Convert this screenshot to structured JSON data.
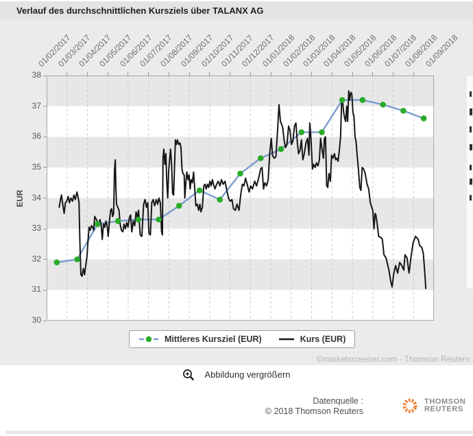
{
  "colors": {
    "panel_bg": "#ebebeb",
    "titlebar_bg": "#e3e3e3",
    "plot_bg": "#ffffff",
    "band": "#e7e7e7",
    "gridline": "#c9c9c9",
    "axis": "#a8a8a8",
    "kurs_line": "#161616",
    "target_line": "#7b9cce",
    "target_marker": "#2aab2a",
    "watermark": "#b3b3b3",
    "logo_orange": "#ef7f2f"
  },
  "chart": {
    "watermark": "©marketscreener.com - Thomson Reuters"
  },
  "zoom_control": {
    "label": "Abbildung vergrößern"
  },
  "footer": {
    "source_line1": "Datenquelle :",
    "source_line2": "© 2018 Thomson Reuters",
    "logo_line1": "THOMSON",
    "logo_line2": "REUTERS"
  },
  "chart_data": {
    "type": "line",
    "title": "Verlauf des durchschnittlichen Kursziels über TALANX AG",
    "xlabel": "",
    "ylabel": "EUR",
    "ylim": [
      30,
      38
    ],
    "yticks": [
      38,
      37,
      36,
      35,
      34,
      33,
      32,
      31,
      30
    ],
    "x_months_range": [
      0,
      19
    ],
    "xlabels": [
      "01/02/2017",
      "01/03/2017",
      "01/04/2017",
      "01/05/2017",
      "01/06/2017",
      "01/07/2017",
      "01/08/2017",
      "01/09/2017",
      "01/10/2017",
      "01/11/2017",
      "01/12/2017",
      "01/01/2018",
      "01/02/2018",
      "01/03/2018",
      "01/04/2018",
      "01/05/2018",
      "01/06/2018",
      "01/07/2018",
      "01/08/2018",
      "01/09/2018"
    ],
    "bands": [
      [
        31,
        32
      ],
      [
        33,
        34
      ],
      [
        35,
        36
      ],
      [
        37,
        38
      ]
    ],
    "grid": "vertical-dashed-monthly",
    "legend_position": "bottom-center",
    "series": [
      {
        "name": "Mittleres Kursziel (EUR)",
        "style": "line-with-markers",
        "points": [
          [
            0.5,
            31.9
          ],
          [
            1.5,
            32.0
          ],
          [
            2.5,
            33.15
          ],
          [
            3.5,
            33.25
          ],
          [
            4.5,
            33.3
          ],
          [
            5.5,
            33.3
          ],
          [
            6.5,
            33.75
          ],
          [
            7.5,
            34.25
          ],
          [
            8.5,
            33.95
          ],
          [
            9.5,
            34.8
          ],
          [
            10.5,
            35.3
          ],
          [
            11.5,
            35.6
          ],
          [
            12.5,
            36.15
          ],
          [
            13.5,
            36.15
          ],
          [
            14.5,
            37.2
          ],
          [
            15.5,
            37.2
          ],
          [
            16.5,
            37.05
          ],
          [
            17.5,
            36.85
          ],
          [
            18.5,
            36.6
          ]
        ]
      },
      {
        "name": "Kurs (EUR)",
        "style": "line",
        "points": [
          [
            0.62,
            33.7
          ],
          [
            0.68,
            33.95
          ],
          [
            0.73,
            34.1
          ],
          [
            0.79,
            33.8
          ],
          [
            0.86,
            33.5
          ],
          [
            0.92,
            33.85
          ],
          [
            0.99,
            33.9
          ],
          [
            1.06,
            34.05
          ],
          [
            1.12,
            33.85
          ],
          [
            1.19,
            34.0
          ],
          [
            1.27,
            33.9
          ],
          [
            1.34,
            34.1
          ],
          [
            1.41,
            33.95
          ],
          [
            1.49,
            34.2
          ],
          [
            1.55,
            34.0
          ],
          [
            1.59,
            33.85
          ],
          [
            1.63,
            32.6
          ],
          [
            1.68,
            31.5
          ],
          [
            1.74,
            31.45
          ],
          [
            1.8,
            31.7
          ],
          [
            1.86,
            31.5
          ],
          [
            1.92,
            31.8
          ],
          [
            1.98,
            32.1
          ],
          [
            2.03,
            32.6
          ],
          [
            2.08,
            33.05
          ],
          [
            2.14,
            32.95
          ],
          [
            2.2,
            33.1
          ],
          [
            2.26,
            33.05
          ],
          [
            2.31,
            32.95
          ],
          [
            2.36,
            33.4
          ],
          [
            2.44,
            33.3
          ],
          [
            2.51,
            33.2
          ],
          [
            2.56,
            33.1
          ],
          [
            2.62,
            33.3
          ],
          [
            2.68,
            33.1
          ],
          [
            2.73,
            32.65
          ],
          [
            2.79,
            33.15
          ],
          [
            2.85,
            33.05
          ],
          [
            2.91,
            33.25
          ],
          [
            2.97,
            33.1
          ],
          [
            3.02,
            32.75
          ],
          [
            3.09,
            33.3
          ],
          [
            3.14,
            33.6
          ],
          [
            3.19,
            33.65
          ],
          [
            3.24,
            33.4
          ],
          [
            3.29,
            33.5
          ],
          [
            3.33,
            34.9
          ],
          [
            3.37,
            35.25
          ],
          [
            3.4,
            34.3
          ],
          [
            3.43,
            33.8
          ],
          [
            3.49,
            33.7
          ],
          [
            3.55,
            33.6
          ],
          [
            3.61,
            33.15
          ],
          [
            3.67,
            32.95
          ],
          [
            3.74,
            32.9
          ],
          [
            3.8,
            33.15
          ],
          [
            3.86,
            33.0
          ],
          [
            3.93,
            33.2
          ],
          [
            3.99,
            33.05
          ],
          [
            4.06,
            33.35
          ],
          [
            4.12,
            33.45
          ],
          [
            4.18,
            32.9
          ],
          [
            4.25,
            33.25
          ],
          [
            4.32,
            33.1
          ],
          [
            4.39,
            33.55
          ],
          [
            4.45,
            33.35
          ],
          [
            4.51,
            33.6
          ],
          [
            4.59,
            32.8
          ],
          [
            4.67,
            32.75
          ],
          [
            4.76,
            33.8
          ],
          [
            4.83,
            33.95
          ],
          [
            4.9,
            33.7
          ],
          [
            4.96,
            33.85
          ],
          [
            5.02,
            32.85
          ],
          [
            5.09,
            32.8
          ],
          [
            5.16,
            33.85
          ],
          [
            5.23,
            33.95
          ],
          [
            5.3,
            33.75
          ],
          [
            5.38,
            33.95
          ],
          [
            5.45,
            33.8
          ],
          [
            5.51,
            34.0
          ],
          [
            5.58,
            33.85
          ],
          [
            5.64,
            32.9
          ],
          [
            5.68,
            32.8
          ],
          [
            5.71,
            35.3
          ],
          [
            5.75,
            35.6
          ],
          [
            5.8,
            35.1
          ],
          [
            5.85,
            35.45
          ],
          [
            5.89,
            34.6
          ],
          [
            5.94,
            34.0
          ],
          [
            5.99,
            34.9
          ],
          [
            6.04,
            35.3
          ],
          [
            6.08,
            35.6
          ],
          [
            6.13,
            35.1
          ],
          [
            6.18,
            34.15
          ],
          [
            6.23,
            34.1
          ],
          [
            6.28,
            35.1
          ],
          [
            6.32,
            35.9
          ],
          [
            6.37,
            35.75
          ],
          [
            6.42,
            35.9
          ],
          [
            6.48,
            35.75
          ],
          [
            6.54,
            35.8
          ],
          [
            6.59,
            35.65
          ],
          [
            6.64,
            34.95
          ],
          [
            6.69,
            34.8
          ],
          [
            6.75,
            34.75
          ],
          [
            6.78,
            34.0
          ],
          [
            6.83,
            34.5
          ],
          [
            6.88,
            34.85
          ],
          [
            6.94,
            34.6
          ],
          [
            6.99,
            34.75
          ],
          [
            7.04,
            34.3
          ],
          [
            7.09,
            34.6
          ],
          [
            7.15,
            34.5
          ],
          [
            7.21,
            34.85
          ],
          [
            7.27,
            34.25
          ],
          [
            7.32,
            33.75
          ],
          [
            7.39,
            33.8
          ],
          [
            7.46,
            33.6
          ],
          [
            7.52,
            33.8
          ],
          [
            7.57,
            33.55
          ],
          [
            7.64,
            33.7
          ],
          [
            7.71,
            34.4
          ],
          [
            7.77,
            34.45
          ],
          [
            7.83,
            34.3
          ],
          [
            7.89,
            34.45
          ],
          [
            7.95,
            34.35
          ],
          [
            8.01,
            34.55
          ],
          [
            8.07,
            34.4
          ],
          [
            8.13,
            34.6
          ],
          [
            8.19,
            34.45
          ],
          [
            8.26,
            34.3
          ],
          [
            8.34,
            34.45
          ],
          [
            8.42,
            34.55
          ],
          [
            8.5,
            34.4
          ],
          [
            8.58,
            34.6
          ],
          [
            8.66,
            34.45
          ],
          [
            8.75,
            34.55
          ],
          [
            8.84,
            34.25
          ],
          [
            8.92,
            34.0
          ],
          [
            9.0,
            33.9
          ],
          [
            9.09,
            33.95
          ],
          [
            9.17,
            33.65
          ],
          [
            9.26,
            33.6
          ],
          [
            9.34,
            33.8
          ],
          [
            9.44,
            33.6
          ],
          [
            9.52,
            34.1
          ],
          [
            9.6,
            34.45
          ],
          [
            9.68,
            34.4
          ],
          [
            9.76,
            34.65
          ],
          [
            9.84,
            34.45
          ],
          [
            9.93,
            34.2
          ],
          [
            10.01,
            34.4
          ],
          [
            10.1,
            34.3
          ],
          [
            10.21,
            34.55
          ],
          [
            10.3,
            34.4
          ],
          [
            10.4,
            34.65
          ],
          [
            10.5,
            34.95
          ],
          [
            10.57,
            35.0
          ],
          [
            10.64,
            34.3
          ],
          [
            10.71,
            34.5
          ],
          [
            10.79,
            34.4
          ],
          [
            10.87,
            34.6
          ],
          [
            10.95,
            35.5
          ],
          [
            11.02,
            35.95
          ],
          [
            11.08,
            35.4
          ],
          [
            11.16,
            35.3
          ],
          [
            11.25,
            35.35
          ],
          [
            11.33,
            36.2
          ],
          [
            11.4,
            37.05
          ],
          [
            11.47,
            36.5
          ],
          [
            11.53,
            36.4
          ],
          [
            11.58,
            36.3
          ],
          [
            11.65,
            35.9
          ],
          [
            11.72,
            35.65
          ],
          [
            11.79,
            35.75
          ],
          [
            11.87,
            36.35
          ],
          [
            11.94,
            36.2
          ],
          [
            12.01,
            35.75
          ],
          [
            12.08,
            35.85
          ],
          [
            12.16,
            36.35
          ],
          [
            12.23,
            36.45
          ],
          [
            12.3,
            35.8
          ],
          [
            12.36,
            35.45
          ],
          [
            12.43,
            35.55
          ],
          [
            12.5,
            35.9
          ],
          [
            12.57,
            35.25
          ],
          [
            12.64,
            35.45
          ],
          [
            12.72,
            35.8
          ],
          [
            12.8,
            35.95
          ],
          [
            12.87,
            35.4
          ],
          [
            12.91,
            36.45
          ],
          [
            12.97,
            35.9
          ],
          [
            13.04,
            34.95
          ],
          [
            13.1,
            35.1
          ],
          [
            13.17,
            35.0
          ],
          [
            13.24,
            35.15
          ],
          [
            13.31,
            35.05
          ],
          [
            13.38,
            35.25
          ],
          [
            13.44,
            35.95
          ],
          [
            13.51,
            35.6
          ],
          [
            13.58,
            35.3
          ],
          [
            13.63,
            35.95
          ],
          [
            13.68,
            36.0
          ],
          [
            13.74,
            34.4
          ],
          [
            13.79,
            34.35
          ],
          [
            13.85,
            34.8
          ],
          [
            13.92,
            34.55
          ],
          [
            13.98,
            35.4
          ],
          [
            14.05,
            35.3
          ],
          [
            14.12,
            35.45
          ],
          [
            14.18,
            35.25
          ],
          [
            14.24,
            35.3
          ],
          [
            14.3,
            35.2
          ],
          [
            14.36,
            35.55
          ],
          [
            14.42,
            36.0
          ],
          [
            14.47,
            37.1
          ],
          [
            14.52,
            37.15
          ],
          [
            14.57,
            36.8
          ],
          [
            14.62,
            36.6
          ],
          [
            14.67,
            36.5
          ],
          [
            14.72,
            37.0
          ],
          [
            14.77,
            36.5
          ],
          [
            14.82,
            37.5
          ],
          [
            14.86,
            37.2
          ],
          [
            14.92,
            37.45
          ],
          [
            14.97,
            37.4
          ],
          [
            15.03,
            36.8
          ],
          [
            15.08,
            36.65
          ],
          [
            15.13,
            36.0
          ],
          [
            15.18,
            35.85
          ],
          [
            15.24,
            35.35
          ],
          [
            15.3,
            34.9
          ],
          [
            15.36,
            34.35
          ],
          [
            15.42,
            34.25
          ],
          [
            15.48,
            35.0
          ],
          [
            15.55,
            34.95
          ],
          [
            15.63,
            34.8
          ],
          [
            15.72,
            34.45
          ],
          [
            15.8,
            34.3
          ],
          [
            15.88,
            33.85
          ],
          [
            15.95,
            33.7
          ],
          [
            16.0,
            33.6
          ],
          [
            16.06,
            33.0
          ],
          [
            16.11,
            33.5
          ],
          [
            16.15,
            33.45
          ],
          [
            16.21,
            33.2
          ],
          [
            16.29,
            32.75
          ],
          [
            16.42,
            32.7
          ],
          [
            16.47,
            32.65
          ],
          [
            16.55,
            32.15
          ],
          [
            16.65,
            32.05
          ],
          [
            16.79,
            31.65
          ],
          [
            16.89,
            31.25
          ],
          [
            16.95,
            31.1
          ],
          [
            17.02,
            31.5
          ],
          [
            17.12,
            31.8
          ],
          [
            17.22,
            31.55
          ],
          [
            17.32,
            31.9
          ],
          [
            17.42,
            31.8
          ],
          [
            17.52,
            31.65
          ],
          [
            17.58,
            32.15
          ],
          [
            17.68,
            32.05
          ],
          [
            17.78,
            31.55
          ],
          [
            17.88,
            32.1
          ],
          [
            17.98,
            32.55
          ],
          [
            18.1,
            32.75
          ],
          [
            18.23,
            32.65
          ],
          [
            18.3,
            32.45
          ],
          [
            18.4,
            32.4
          ],
          [
            18.48,
            32.2
          ],
          [
            18.56,
            31.5
          ],
          [
            18.6,
            31.05
          ]
        ]
      }
    ]
  }
}
